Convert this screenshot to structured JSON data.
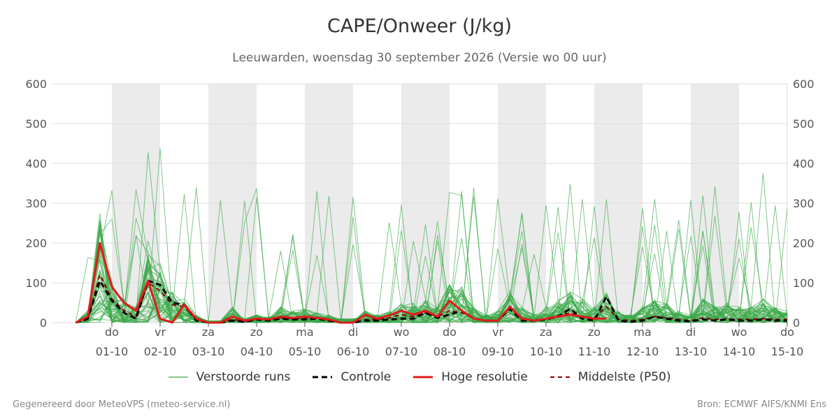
{
  "chart_data": {
    "type": "line",
    "title": "CAPE/Onweer (J/kg)",
    "subtitle": "Leeuwarden, woensdag 30 september 2026 (Versie wo 00 uur)",
    "xlabel": "",
    "ylabel": "",
    "ylim": [
      0,
      600
    ],
    "y_ticks": [
      0,
      100,
      200,
      300,
      400,
      500,
      600
    ],
    "grid": true,
    "legend_position": "bottom",
    "day_ticks": [
      {
        "weekday": "do",
        "date": "01-10"
      },
      {
        "weekday": "vr",
        "date": "02-10"
      },
      {
        "weekday": "za",
        "date": "03-10"
      },
      {
        "weekday": "zo",
        "date": "04-10"
      },
      {
        "weekday": "ma",
        "date": "05-10"
      },
      {
        "weekday": "di",
        "date": "06-10"
      },
      {
        "weekday": "wo",
        "date": "07-10"
      },
      {
        "weekday": "do",
        "date": "08-10"
      },
      {
        "weekday": "vr",
        "date": "09-10"
      },
      {
        "weekday": "za",
        "date": "10-10"
      },
      {
        "weekday": "zo",
        "date": "11-10"
      },
      {
        "weekday": "ma",
        "date": "12-10"
      },
      {
        "weekday": "di",
        "date": "13-10"
      },
      {
        "weekday": "wo",
        "date": "14-10"
      },
      {
        "weekday": "do",
        "date": "15-10"
      }
    ],
    "x_hours_from_start": [
      -18,
      -12,
      -6,
      0,
      6,
      12,
      18,
      24,
      30,
      36,
      42,
      48,
      54,
      60,
      66,
      72,
      78,
      84,
      90,
      96,
      102,
      108,
      114,
      120,
      126,
      132,
      138,
      144,
      150,
      156,
      162,
      168,
      174,
      180,
      186,
      192,
      198,
      204,
      210,
      216,
      222,
      228,
      234,
      240,
      246,
      252,
      258,
      264,
      270,
      276,
      282,
      288,
      294,
      300,
      306,
      312,
      318,
      324,
      330,
      336
    ],
    "series": [
      {
        "name": "Hoge resolutie",
        "values": [
          0,
          15,
          200,
          90,
          50,
          30,
          105,
          10,
          0,
          45,
          10,
          0,
          0,
          15,
          5,
          10,
          8,
          15,
          12,
          15,
          12,
          8,
          0,
          0,
          20,
          10,
          18,
          30,
          20,
          30,
          15,
          55,
          30,
          10,
          5,
          5,
          40,
          10,
          5,
          10,
          15,
          20,
          15,
          10,
          10,
          null,
          null,
          null,
          null,
          null,
          null,
          null,
          null,
          null,
          null,
          null,
          null,
          null,
          null,
          null
        ]
      },
      {
        "name": "Controle",
        "values": [
          0,
          10,
          105,
          55,
          25,
          10,
          105,
          95,
          50,
          45,
          5,
          0,
          0,
          5,
          2,
          8,
          5,
          10,
          8,
          8,
          10,
          5,
          0,
          0,
          5,
          5,
          8,
          10,
          10,
          25,
          12,
          20,
          30,
          10,
          5,
          5,
          35,
          5,
          5,
          8,
          15,
          35,
          10,
          5,
          65,
          5,
          2,
          5,
          15,
          10,
          5,
          3,
          8,
          5,
          8,
          5,
          5,
          8,
          5,
          5
        ]
      },
      {
        "name": "Middelste (P50)",
        "values": [
          0,
          8,
          120,
          60,
          30,
          15,
          100,
          80,
          45,
          40,
          8,
          0,
          0,
          8,
          3,
          8,
          6,
          12,
          10,
          10,
          10,
          6,
          0,
          0,
          8,
          8,
          12,
          20,
          15,
          25,
          15,
          30,
          25,
          10,
          5,
          5,
          35,
          8,
          6,
          10,
          18,
          25,
          15,
          12,
          40,
          8,
          5,
          8,
          15,
          12,
          8,
          5,
          12,
          8,
          10,
          8,
          8,
          10,
          8,
          8
        ]
      }
    ],
    "ensemble_member_count": 50
  },
  "colors": {
    "ensemble": "#39a847",
    "control": "#000000",
    "high_resolution": "#e11b1b",
    "median": "#8b0000",
    "weekend_band": "#ebebeb",
    "grid": "#dcdcdc"
  },
  "legend": [
    {
      "label": "Verstoorde runs",
      "key": "ensemble"
    },
    {
      "label": "Controle",
      "key": "control"
    },
    {
      "label": "Hoge resolutie",
      "key": "high_resolution"
    },
    {
      "label": "Middelste (P50)",
      "key": "median"
    }
  ],
  "footer": {
    "left": "Gegenereerd door MeteoVPS (meteo-service.nl)",
    "right": "Bron: ECMWF AIFS/KNMI Ens"
  }
}
